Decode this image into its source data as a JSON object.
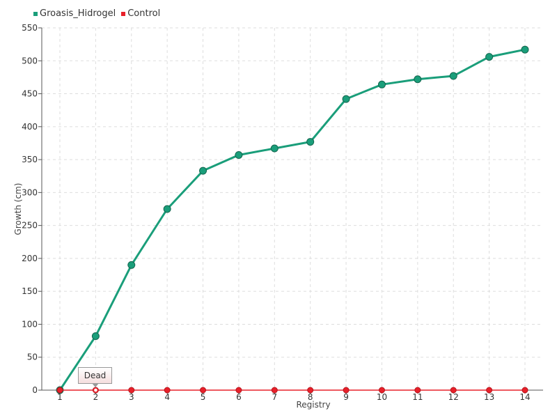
{
  "chart_data": {
    "type": "line",
    "x": [
      "1",
      "2",
      "3",
      "4",
      "5",
      "6",
      "7",
      "8",
      "9",
      "10",
      "11",
      "12",
      "13",
      "14"
    ],
    "series": [
      {
        "name": "Groasis_Hidrogel",
        "color": "#1a9e7a",
        "values": [
          0,
          82,
          190,
          275,
          333,
          357,
          367,
          377,
          442,
          464,
          472,
          477,
          506,
          517
        ]
      },
      {
        "name": "Control",
        "color": "#e8202a",
        "values": [
          0,
          0,
          0,
          0,
          0,
          0,
          0,
          0,
          0,
          0,
          0,
          0,
          0,
          0
        ]
      }
    ],
    "xlabel": "Registry",
    "ylabel": "Growth (cm)",
    "ylim": [
      0,
      550
    ],
    "yticks": [
      0,
      50,
      100,
      150,
      200,
      250,
      300,
      350,
      400,
      450,
      500,
      550
    ],
    "grid": true,
    "legend": "top-left",
    "annotations": [
      {
        "text": "Dead",
        "x": "2",
        "series": "Control"
      }
    ]
  }
}
